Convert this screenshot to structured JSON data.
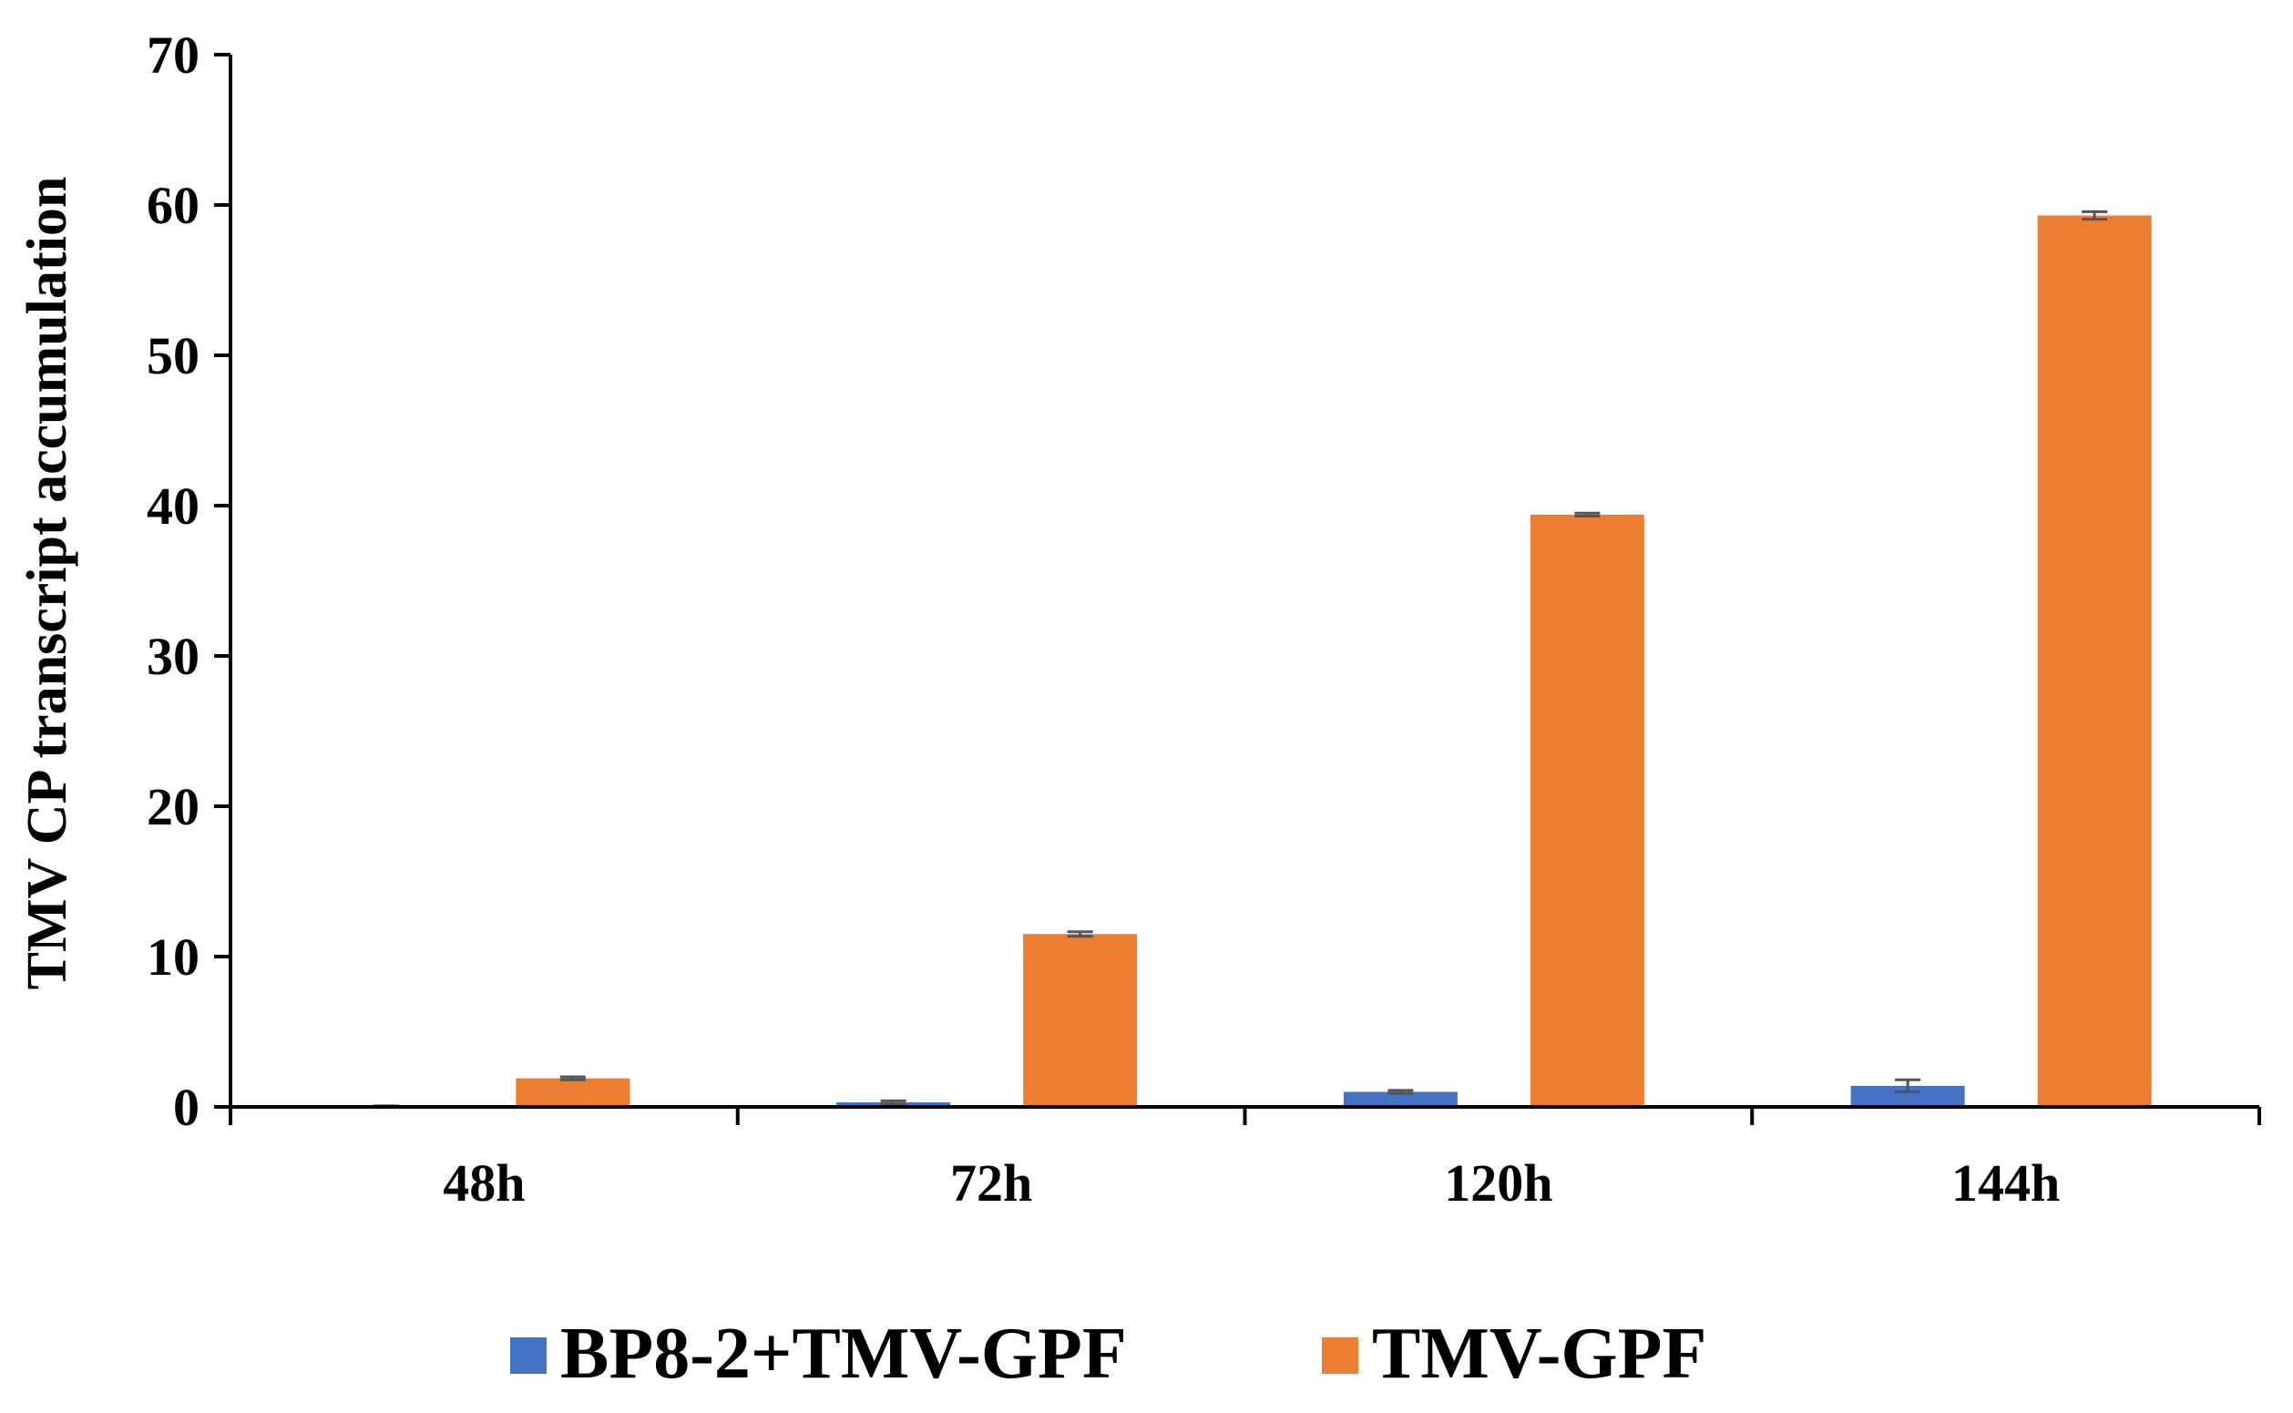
{
  "chart_data": {
    "type": "bar",
    "title": "",
    "xlabel": "",
    "ylabel": "TMV CP transcript  accumulation",
    "ylim": [
      0,
      70
    ],
    "yticks": [
      0,
      10,
      20,
      30,
      40,
      50,
      60,
      70
    ],
    "categories": [
      "48h",
      "72h",
      "120h",
      "144h"
    ],
    "grid": false,
    "legend_position": "bottom",
    "series": [
      {
        "name": "BP8-2+TMV-GPF",
        "color": "#4472c4",
        "values": [
          0.05,
          0.3,
          1.0,
          1.4
        ],
        "errors": [
          0.02,
          0.1,
          0.1,
          0.4
        ]
      },
      {
        "name": "TMV-GPF",
        "color": "#ed7d31",
        "values": [
          1.9,
          11.5,
          39.4,
          59.3
        ],
        "errors": [
          0.1,
          0.15,
          0.1,
          0.25
        ]
      }
    ]
  }
}
